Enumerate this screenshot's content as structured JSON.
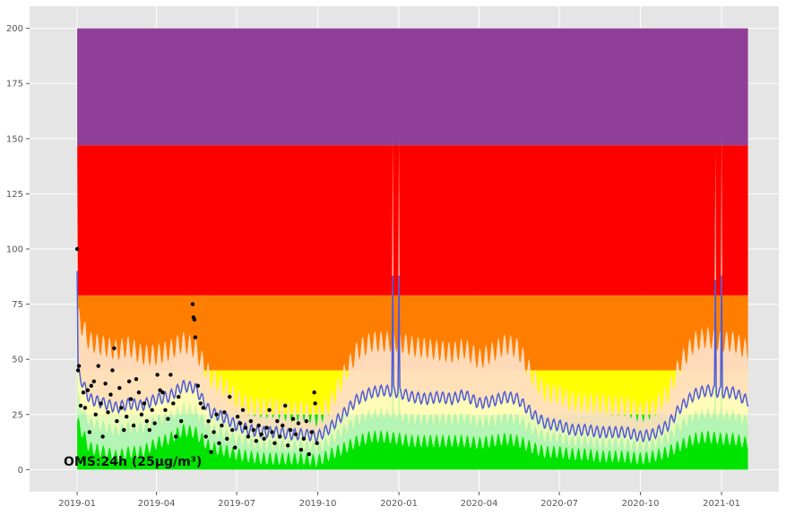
{
  "chart_data": {
    "type": "area",
    "title": "",
    "xlabel": "",
    "ylabel": "",
    "grid": true,
    "xlim": [
      "2018-11-08",
      "2021-03-07"
    ],
    "ylim": [
      -10,
      210
    ],
    "y_ticks": [
      0,
      25,
      50,
      75,
      100,
      125,
      150,
      175,
      200
    ],
    "x_ticks": [
      {
        "date": "2019-01-01",
        "label": "2019-01"
      },
      {
        "date": "2019-04-01",
        "label": "2019-04"
      },
      {
        "date": "2019-07-01",
        "label": "2019-07"
      },
      {
        "date": "2019-10-01",
        "label": "2019-10"
      },
      {
        "date": "2020-01-01",
        "label": "2020-01"
      },
      {
        "date": "2020-04-01",
        "label": "2020-04"
      },
      {
        "date": "2020-07-01",
        "label": "2020-07"
      },
      {
        "date": "2020-10-01",
        "label": "2020-10"
      },
      {
        "date": "2021-01-01",
        "label": "2021-01"
      }
    ],
    "bands": [
      {
        "from": 0,
        "to": 25,
        "color": "#00e400"
      },
      {
        "from": 25,
        "to": 45,
        "color": "#ffff00"
      },
      {
        "from": 45,
        "to": 79,
        "color": "#ff7e00"
      },
      {
        "from": 79,
        "to": 147,
        "color": "#ff0000"
      },
      {
        "from": 147,
        "to": 200,
        "color": "#8f3f97"
      }
    ],
    "band_x_range": [
      "2019-01-01",
      "2021-01-31"
    ],
    "forecast": {
      "x": [
        "2019-01-01",
        "2019-01-15",
        "2019-02-01",
        "2019-02-15",
        "2019-03-01",
        "2019-03-15",
        "2019-04-01",
        "2019-04-15",
        "2019-05-01",
        "2019-05-15",
        "2019-06-01",
        "2019-06-15",
        "2019-07-01",
        "2019-07-15",
        "2019-08-01",
        "2019-08-15",
        "2019-09-01",
        "2019-09-15",
        "2019-10-01",
        "2019-10-15",
        "2019-11-01",
        "2019-11-15",
        "2019-12-01",
        "2019-12-15",
        "2020-01-01",
        "2020-01-15",
        "2020-02-01",
        "2020-02-15",
        "2020-03-01",
        "2020-03-15",
        "2020-04-01",
        "2020-04-15",
        "2020-05-01",
        "2020-05-15",
        "2020-06-01",
        "2020-06-15",
        "2020-07-01",
        "2020-07-15",
        "2020-08-01",
        "2020-08-15",
        "2020-09-01",
        "2020-09-15",
        "2020-10-01",
        "2020-10-15",
        "2020-11-01",
        "2020-11-15",
        "2020-12-01",
        "2020-12-15",
        "2021-01-01",
        "2021-01-15",
        "2021-01-31"
      ],
      "yhat": [
        45,
        32,
        30,
        28,
        30,
        29,
        32,
        33,
        38,
        37,
        26,
        24,
        20,
        18,
        17,
        17,
        16,
        16,
        15,
        19,
        26,
        32,
        35,
        36,
        35,
        33,
        32,
        33,
        32,
        34,
        30,
        31,
        33,
        32,
        25,
        21,
        20,
        18,
        18,
        17,
        17,
        17,
        15,
        16,
        20,
        28,
        34,
        36,
        35,
        35,
        31
      ],
      "upper": [
        70,
        58,
        56,
        54,
        56,
        52,
        52,
        54,
        58,
        55,
        42,
        38,
        32,
        29,
        28,
        28,
        26,
        27,
        24,
        30,
        44,
        54,
        58,
        58,
        58,
        56,
        55,
        54,
        53,
        55,
        50,
        53,
        57,
        55,
        42,
        35,
        34,
        31,
        30,
        30,
        29,
        29,
        26,
        28,
        34,
        48,
        58,
        60,
        58,
        58,
        54
      ],
      "lower": [
        22,
        10,
        8,
        6,
        8,
        8,
        12,
        14,
        18,
        17,
        10,
        9,
        7,
        6,
        5,
        5,
        5,
        5,
        4,
        7,
        10,
        13,
        15,
        15,
        14,
        13,
        13,
        13,
        13,
        13,
        12,
        13,
        14,
        13,
        10,
        8,
        8,
        7,
        7,
        6,
        6,
        6,
        5,
        6,
        8,
        11,
        14,
        15,
        14,
        14,
        12
      ]
    },
    "spikes": [
      {
        "x": "2019-01-01",
        "yhat": 90,
        "upper": 155
      },
      {
        "x": "2019-12-25",
        "yhat": 88,
        "upper": 150
      },
      {
        "x": "2020-01-01",
        "yhat": 88,
        "upper": 151
      },
      {
        "x": "2020-12-25",
        "yhat": 86,
        "upper": 145
      },
      {
        "x": "2021-01-01",
        "yhat": 88,
        "upper": 152
      }
    ],
    "observed": [
      {
        "x": "2019-01-01",
        "y": 100
      },
      {
        "x": "2019-01-02",
        "y": 45
      },
      {
        "x": "2019-01-03",
        "y": 47
      },
      {
        "x": "2019-01-05",
        "y": 29
      },
      {
        "x": "2019-01-08",
        "y": 35
      },
      {
        "x": "2019-01-10",
        "y": 28
      },
      {
        "x": "2019-01-13",
        "y": 36
      },
      {
        "x": "2019-01-15",
        "y": 17
      },
      {
        "x": "2019-01-17",
        "y": 38
      },
      {
        "x": "2019-01-20",
        "y": 40
      },
      {
        "x": "2019-01-22",
        "y": 25
      },
      {
        "x": "2019-01-25",
        "y": 47
      },
      {
        "x": "2019-01-28",
        "y": 30
      },
      {
        "x": "2019-01-30",
        "y": 15
      },
      {
        "x": "2019-02-02",
        "y": 39
      },
      {
        "x": "2019-02-05",
        "y": 26
      },
      {
        "x": "2019-02-08",
        "y": 34
      },
      {
        "x": "2019-02-10",
        "y": 45
      },
      {
        "x": "2019-02-12",
        "y": 55
      },
      {
        "x": "2019-02-15",
        "y": 22
      },
      {
        "x": "2019-02-18",
        "y": 37
      },
      {
        "x": "2019-02-20",
        "y": 28
      },
      {
        "x": "2019-02-23",
        "y": 18
      },
      {
        "x": "2019-02-26",
        "y": 24
      },
      {
        "x": "2019-03-01",
        "y": 40
      },
      {
        "x": "2019-03-03",
        "y": 32
      },
      {
        "x": "2019-03-06",
        "y": 20
      },
      {
        "x": "2019-03-09",
        "y": 41
      },
      {
        "x": "2019-03-12",
        "y": 35
      },
      {
        "x": "2019-03-15",
        "y": 25
      },
      {
        "x": "2019-03-18",
        "y": 30
      },
      {
        "x": "2019-03-21",
        "y": 22
      },
      {
        "x": "2019-03-24",
        "y": 18
      },
      {
        "x": "2019-03-27",
        "y": 27
      },
      {
        "x": "2019-03-30",
        "y": 21
      },
      {
        "x": "2019-04-02",
        "y": 43
      },
      {
        "x": "2019-04-05",
        "y": 36
      },
      {
        "x": "2019-04-08",
        "y": 35
      },
      {
        "x": "2019-04-11",
        "y": 27
      },
      {
        "x": "2019-04-14",
        "y": 23
      },
      {
        "x": "2019-04-17",
        "y": 43
      },
      {
        "x": "2019-04-20",
        "y": 30
      },
      {
        "x": "2019-04-23",
        "y": 15
      },
      {
        "x": "2019-04-26",
        "y": 33
      },
      {
        "x": "2019-04-29",
        "y": 22
      },
      {
        "x": "2019-05-12",
        "y": 75
      },
      {
        "x": "2019-05-13",
        "y": 69
      },
      {
        "x": "2019-05-14",
        "y": 68
      },
      {
        "x": "2019-05-15",
        "y": 60
      },
      {
        "x": "2019-05-18",
        "y": 38
      },
      {
        "x": "2019-05-21",
        "y": 30
      },
      {
        "x": "2019-05-24",
        "y": 28
      },
      {
        "x": "2019-05-27",
        "y": 15
      },
      {
        "x": "2019-05-30",
        "y": 22
      },
      {
        "x": "2019-06-02",
        "y": 8
      },
      {
        "x": "2019-06-05",
        "y": 17
      },
      {
        "x": "2019-06-08",
        "y": 25
      },
      {
        "x": "2019-06-11",
        "y": 12
      },
      {
        "x": "2019-06-14",
        "y": 20
      },
      {
        "x": "2019-06-17",
        "y": 26
      },
      {
        "x": "2019-06-20",
        "y": 14
      },
      {
        "x": "2019-06-23",
        "y": 33
      },
      {
        "x": "2019-06-26",
        "y": 18
      },
      {
        "x": "2019-06-29",
        "y": 10
      },
      {
        "x": "2019-07-02",
        "y": 24
      },
      {
        "x": "2019-07-05",
        "y": 21
      },
      {
        "x": "2019-07-08",
        "y": 27
      },
      {
        "x": "2019-07-11",
        "y": 19
      },
      {
        "x": "2019-07-14",
        "y": 15
      },
      {
        "x": "2019-07-17",
        "y": 22
      },
      {
        "x": "2019-07-20",
        "y": 18
      },
      {
        "x": "2019-07-23",
        "y": 13
      },
      {
        "x": "2019-07-26",
        "y": 20
      },
      {
        "x": "2019-07-29",
        "y": 16
      },
      {
        "x": "2019-08-01",
        "y": 14
      },
      {
        "x": "2019-08-04",
        "y": 19
      },
      {
        "x": "2019-08-07",
        "y": 27
      },
      {
        "x": "2019-08-10",
        "y": 17
      },
      {
        "x": "2019-08-13",
        "y": 12
      },
      {
        "x": "2019-08-16",
        "y": 22
      },
      {
        "x": "2019-08-19",
        "y": 15
      },
      {
        "x": "2019-08-22",
        "y": 20
      },
      {
        "x": "2019-08-25",
        "y": 29
      },
      {
        "x": "2019-08-28",
        "y": 11
      },
      {
        "x": "2019-08-31",
        "y": 18
      },
      {
        "x": "2019-09-03",
        "y": 23
      },
      {
        "x": "2019-09-06",
        "y": 16
      },
      {
        "x": "2019-09-09",
        "y": 21
      },
      {
        "x": "2019-09-12",
        "y": 9
      },
      {
        "x": "2019-09-15",
        "y": 14
      },
      {
        "x": "2019-09-18",
        "y": 22
      },
      {
        "x": "2019-09-21",
        "y": 7
      },
      {
        "x": "2019-09-24",
        "y": 17
      },
      {
        "x": "2019-09-27",
        "y": 35
      },
      {
        "x": "2019-09-28",
        "y": 30
      },
      {
        "x": "2019-09-30",
        "y": 12
      }
    ],
    "colors": {
      "background": "#e5e5e5",
      "grid": "#ffffff",
      "band_upper": "#ffdfc3",
      "band_middle": "#fffbcc",
      "band_lower": "#c8f5c8",
      "forecast_line": "#4e5bd6",
      "observed_points": "#000000"
    },
    "annotation": "OMS:24h (25µg/m³)"
  }
}
